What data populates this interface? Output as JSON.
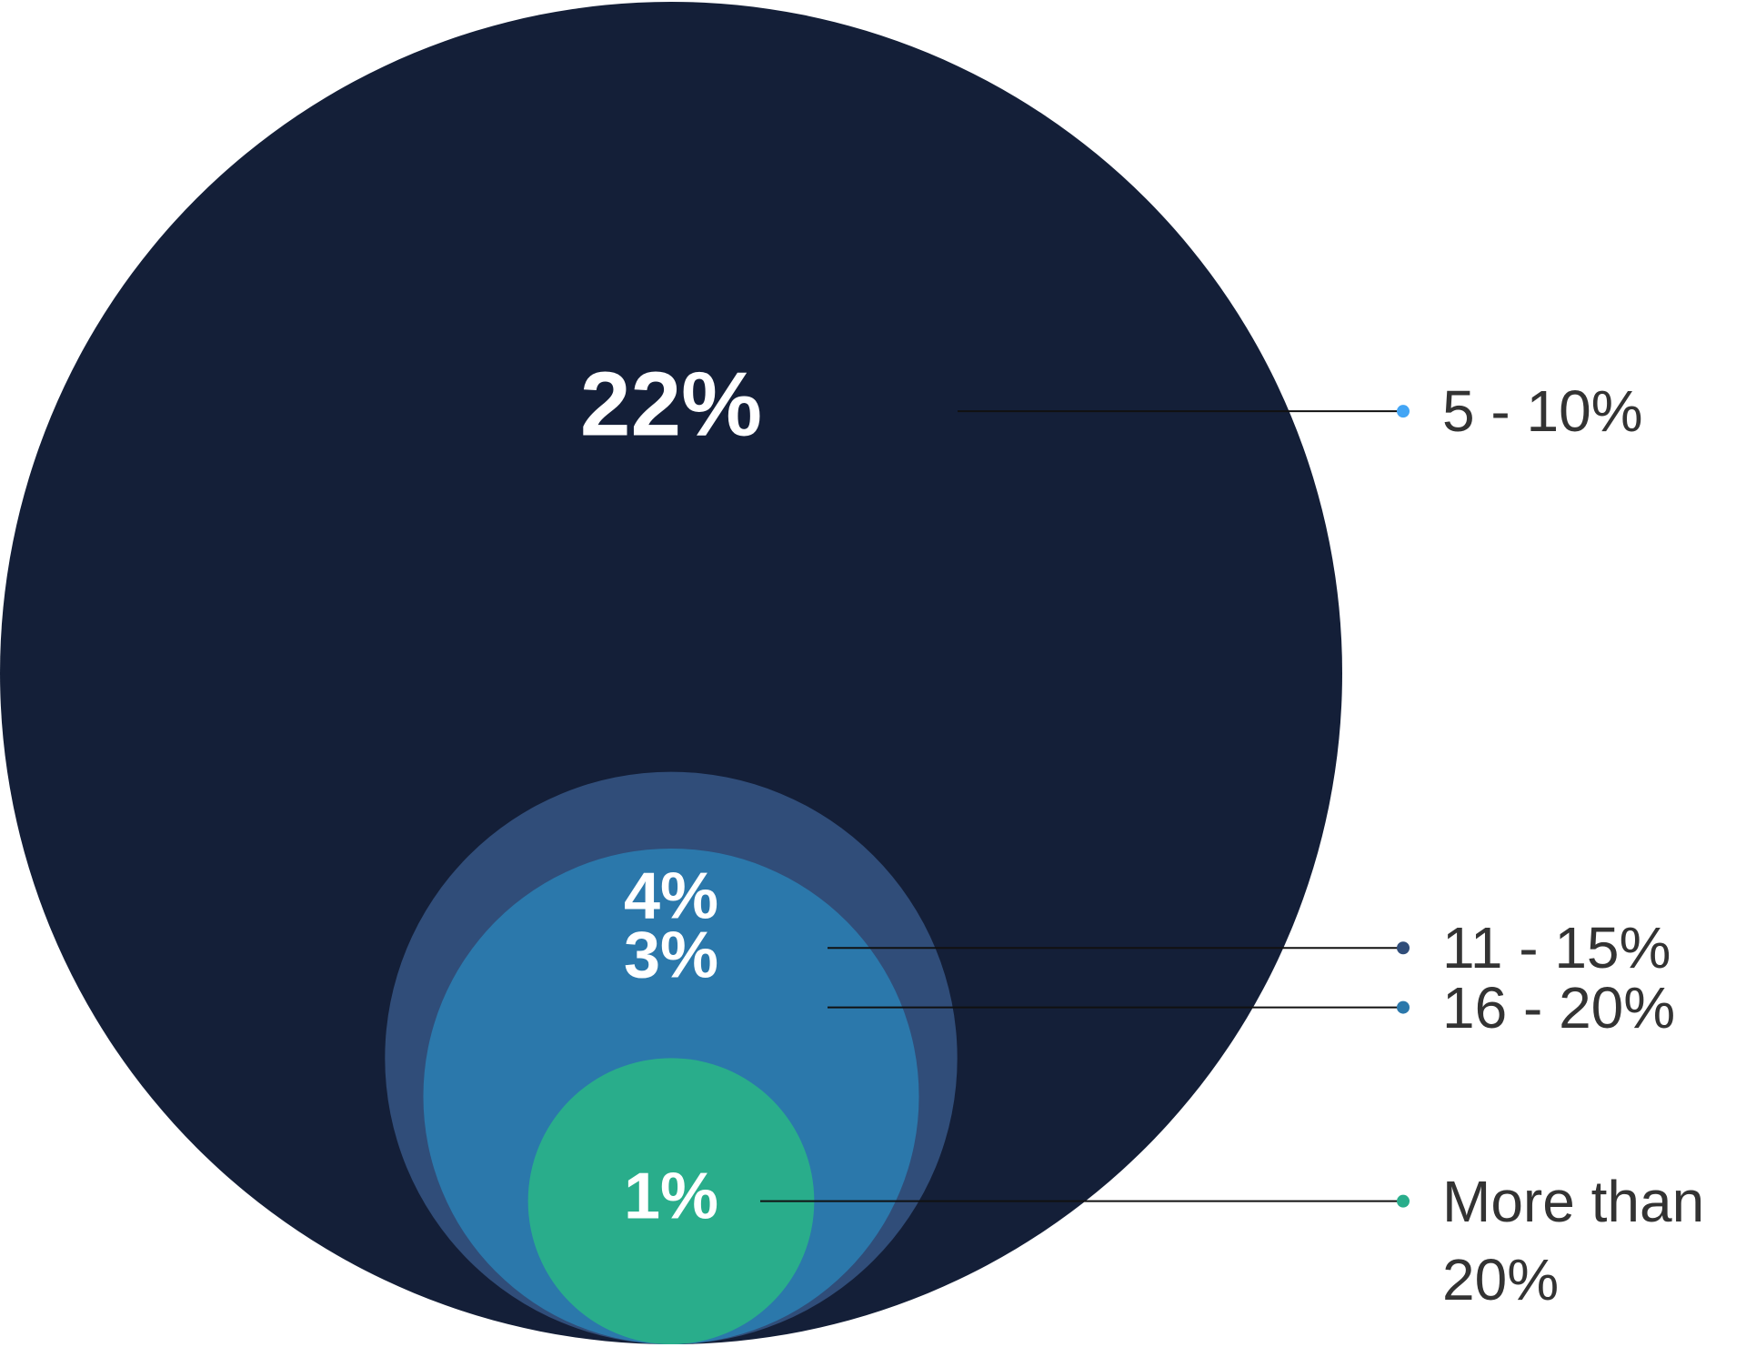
{
  "chart_data": {
    "type": "nested-bubble",
    "categories": [
      "5 - 10%",
      "11 - 15%",
      "16 - 20%",
      "More than 20%"
    ],
    "values": [
      22,
      4,
      3,
      1
    ],
    "value_labels": [
      "22%",
      "4%",
      "3%",
      "1%"
    ],
    "colors": [
      "#141f38",
      "#304d79",
      "#2b78ab",
      "#29ad8b"
    ],
    "legend_colors": [
      "#42a5f5",
      "#304d79",
      "#2b78ab",
      "#29ad8b"
    ]
  }
}
